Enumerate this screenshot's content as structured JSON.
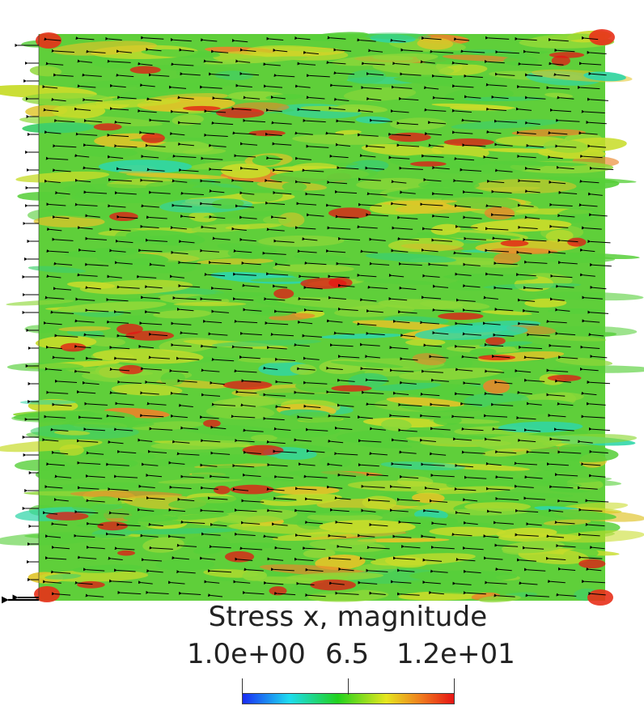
{
  "figure": {
    "field": "Stress x, magnitude",
    "colormap": [
      "#1a2cf5",
      "#1edcf0",
      "#22d21e",
      "#e6e61e",
      "#f0781e",
      "#e61414"
    ]
  },
  "legend": {
    "title": "Stress x, magnitude",
    "min_label": "1.0e+00",
    "mid_label": "6.5",
    "max_label": "1.2e+01",
    "range": [
      1.0,
      12.0
    ]
  }
}
